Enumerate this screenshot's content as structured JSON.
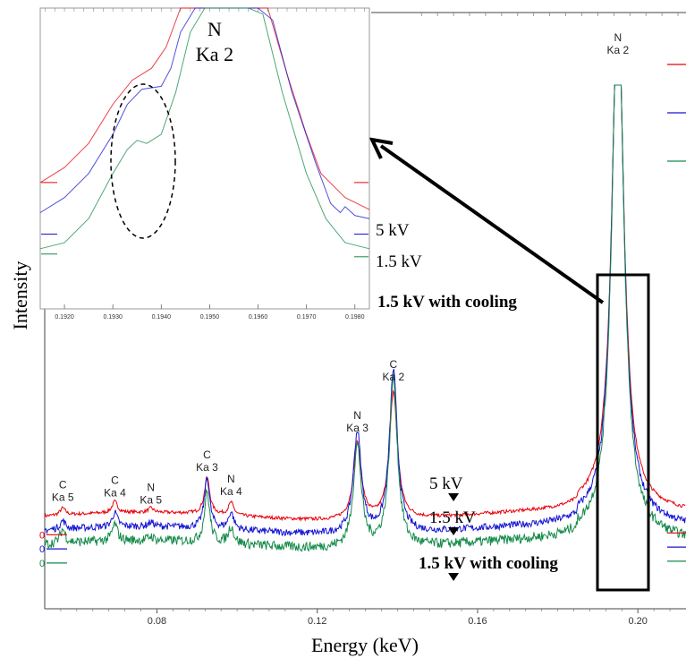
{
  "chart_data": [
    {
      "panel": "main",
      "type": "line",
      "xlabel": "Energy (keV)",
      "ylabel": "Intensity",
      "xlim": [
        0.052,
        0.212
      ],
      "x_ticks": [
        "0.08",
        "0.12",
        "0.16",
        "0.20"
      ],
      "x_tick_values": [
        0.08,
        0.12,
        0.16,
        0.2
      ],
      "y_zero_labels": [
        "0",
        "0",
        "0"
      ],
      "series": [
        {
          "name": "5 kV",
          "color": "#e8000b",
          "baseline": 0.65
        },
        {
          "name": "1.5 kV",
          "color": "#1414d4",
          "baseline": 0.55
        },
        {
          "name": "1.5 kV with cooling",
          "color": "#138a4a",
          "baseline": 0.45
        }
      ],
      "peaks": [
        {
          "element": "C",
          "line": "Ka 5",
          "x": 0.0565,
          "h": [
            0.05,
            0.06,
            0.1
          ]
        },
        {
          "element": "C",
          "line": "Ka 4",
          "x": 0.0695,
          "h": [
            0.08,
            0.1,
            0.12
          ]
        },
        {
          "element": "N",
          "line": "Ka 5",
          "x": 0.0785,
          "h": [
            0.03,
            0.03,
            0.03
          ]
        },
        {
          "element": "C",
          "line": "Ka 3",
          "x": 0.0925,
          "h": [
            0.26,
            0.36,
            0.36
          ]
        },
        {
          "element": "N",
          "line": "Ka 4",
          "x": 0.0985,
          "h": [
            0.09,
            0.12,
            0.12
          ]
        },
        {
          "element": "N",
          "line": "Ka 3",
          "x": 0.13,
          "h": [
            0.54,
            0.72,
            0.72
          ]
        },
        {
          "element": "C",
          "line": "Ka 2",
          "x": 0.139,
          "h": [
            0.9,
            1.15,
            1.2
          ]
        },
        {
          "element": "N",
          "line": "Ka 2",
          "x": 0.195,
          "h": [
            3.62,
            3.75,
            3.85
          ]
        }
      ],
      "markers": [
        "5 kV",
        "1.5 kV",
        "1.5 kV with cooling"
      ]
    },
    {
      "panel": "inset",
      "type": "line",
      "title": "N\nKa 2",
      "x_ticks": [
        "0.1920",
        "0.1930",
        "0.1940",
        "0.1950",
        "0.1960",
        "0.1970",
        "0.1980"
      ],
      "x_tick_values": [
        0.192,
        0.193,
        0.194,
        0.195,
        0.196,
        0.197,
        0.198
      ],
      "xlim": [
        0.1915,
        0.1983
      ],
      "annotation": "dashed ellipse around shoulder near 0.1937 keV",
      "series": [
        {
          "name": "5 kV",
          "color": "#e8000b",
          "points": [
            [
              0.1915,
              0.42
            ],
            [
              0.192,
              0.47
            ],
            [
              0.1925,
              0.55
            ],
            [
              0.193,
              0.68
            ],
            [
              0.1934,
              0.76
            ],
            [
              0.1938,
              0.8
            ],
            [
              0.1941,
              0.87
            ],
            [
              0.1944,
              1.0
            ],
            [
              0.1946,
              1.15
            ],
            [
              0.196,
              1.15
            ],
            [
              0.1962,
              1.0
            ],
            [
              0.1966,
              0.78
            ],
            [
              0.197,
              0.58
            ],
            [
              0.1973,
              0.45
            ],
            [
              0.1978,
              0.37
            ],
            [
              0.1983,
              0.33
            ]
          ]
        },
        {
          "name": "1.5 kV",
          "color": "#1414d4",
          "points": [
            [
              0.1915,
              0.32
            ],
            [
              0.192,
              0.37
            ],
            [
              0.1925,
              0.45
            ],
            [
              0.193,
              0.58
            ],
            [
              0.1933,
              0.68
            ],
            [
              0.1936,
              0.73
            ],
            [
              0.194,
              0.74
            ],
            [
              0.1942,
              0.8
            ],
            [
              0.1944,
              0.92
            ],
            [
              0.1947,
              1.15
            ],
            [
              0.196,
              1.15
            ],
            [
              0.1963,
              0.96
            ],
            [
              0.1967,
              0.72
            ],
            [
              0.1972,
              0.48
            ],
            [
              0.1975,
              0.35
            ],
            [
              0.1977,
              0.32
            ],
            [
              0.1978,
              0.34
            ],
            [
              0.198,
              0.31
            ],
            [
              0.1983,
              0.3
            ]
          ]
        },
        {
          "name": "1.5 kV with cooling",
          "color": "#138a4a",
          "points": [
            [
              0.1915,
              0.2
            ],
            [
              0.192,
              0.22
            ],
            [
              0.1925,
              0.3
            ],
            [
              0.193,
              0.45
            ],
            [
              0.1933,
              0.53
            ],
            [
              0.1935,
              0.56
            ],
            [
              0.1937,
              0.55
            ],
            [
              0.194,
              0.58
            ],
            [
              0.1943,
              0.72
            ],
            [
              0.1946,
              0.92
            ],
            [
              0.1949,
              1.15
            ],
            [
              0.1958,
              1.15
            ],
            [
              0.1961,
              0.98
            ],
            [
              0.1965,
              0.72
            ],
            [
              0.197,
              0.45
            ],
            [
              0.1974,
              0.3
            ],
            [
              0.1978,
              0.22
            ],
            [
              0.1983,
              0.2
            ]
          ]
        }
      ],
      "series_labels": [
        "5 kV",
        "1.5 kV",
        "1.5 kV with cooling"
      ]
    }
  ]
}
